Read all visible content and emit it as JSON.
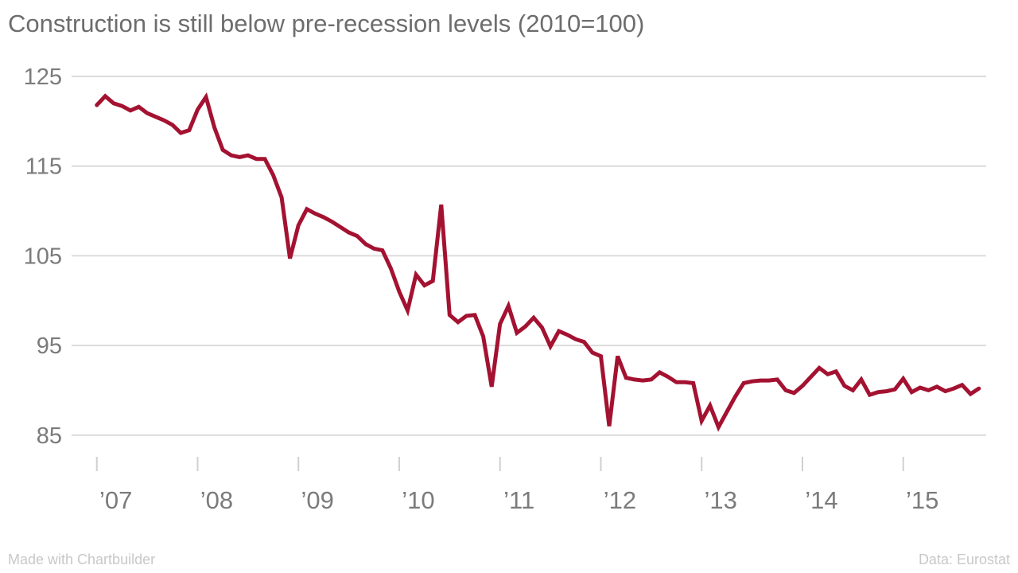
{
  "title": "Construction is still below pre-recession levels (2010=100)",
  "footer": {
    "made_with": "Made with Chartbuilder",
    "source": "Data: Eurostat"
  },
  "colors": {
    "line": "#a41231",
    "grid": "#dcdcdc",
    "tick": "#d0d0d0",
    "title_text": "#6d6d6d",
    "axis_text": "#7b7b7b",
    "footer_text": "#c8c8c8",
    "background": "#ffffff"
  },
  "chart_data": {
    "type": "line",
    "title": "Construction is still below pre-recession levels (2010=100)",
    "frequency": "monthly",
    "x_start": "2007-01",
    "x_end": "2015-10",
    "x_tick_labels": [
      "’07",
      "’08",
      "’09",
      "’10",
      "’11",
      "’12",
      "’13",
      "’14",
      "’15"
    ],
    "y_ticks": [
      125,
      115,
      105,
      95,
      85
    ],
    "ylim": [
      85,
      125
    ],
    "grid": true,
    "legend": "none",
    "series": [
      {
        "name": "Construction (2010=100)",
        "values": [
          121.8,
          122.8,
          122.0,
          121.7,
          121.2,
          121.6,
          120.9,
          120.5,
          120.1,
          119.6,
          118.7,
          119.0,
          121.3,
          122.7,
          119.3,
          116.8,
          116.2,
          116.0,
          116.2,
          115.8,
          115.8,
          114.0,
          111.5,
          104.7,
          108.4,
          110.2,
          109.7,
          109.3,
          108.8,
          108.2,
          107.6,
          107.2,
          106.3,
          105.8,
          105.6,
          103.6,
          101.0,
          98.9,
          102.9,
          101.7,
          102.2,
          110.7,
          98.4,
          97.6,
          98.3,
          98.4,
          96.0,
          90.4,
          97.4,
          99.4,
          96.4,
          97.1,
          98.1,
          97.0,
          94.9,
          96.6,
          96.2,
          95.7,
          95.4,
          94.2,
          93.8,
          86.0,
          93.8,
          91.4,
          91.2,
          91.1,
          91.2,
          92.0,
          91.5,
          90.9,
          90.9,
          90.8,
          86.6,
          88.3,
          85.9,
          87.6,
          89.3,
          90.8,
          91.0,
          91.1,
          91.1,
          91.2,
          90.0,
          89.7,
          90.5,
          91.5,
          92.5,
          91.8,
          92.1,
          90.5,
          90.0,
          91.2,
          89.5,
          89.8,
          89.9,
          90.1,
          91.3,
          89.8,
          90.3,
          90.0,
          90.4,
          89.9,
          90.2,
          90.6,
          89.6,
          90.2
        ]
      }
    ]
  }
}
